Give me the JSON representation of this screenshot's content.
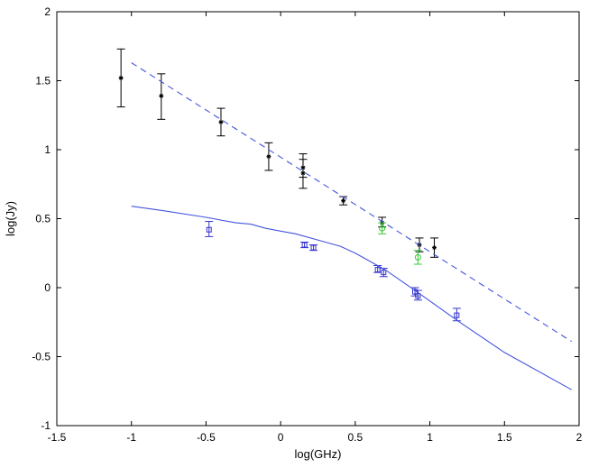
{
  "chart_data": {
    "type": "scatter",
    "xlabel": "log(GHz)",
    "ylabel": "log(Jy)",
    "xlim": [
      -1.5,
      2
    ],
    "ylim": [
      -1,
      2
    ],
    "xticks": [
      "-1.5",
      "-1",
      "-0.5",
      "0",
      "0.5",
      "1",
      "1.5",
      "2"
    ],
    "yticks": [
      "-1",
      "-0.5",
      "0",
      "0.5",
      "1",
      "1.5",
      "2"
    ],
    "grid": false,
    "series": [
      {
        "kind": "errorbar",
        "marker": "star",
        "color": "#000000",
        "points": [
          {
            "x": -1.07,
            "y": 1.52,
            "lo": 1.31,
            "hi": 1.73
          },
          {
            "x": -0.8,
            "y": 1.39,
            "lo": 1.22,
            "hi": 1.55
          },
          {
            "x": -0.4,
            "y": 1.2,
            "lo": 1.1,
            "hi": 1.3
          },
          {
            "x": -0.08,
            "y": 0.95,
            "lo": 0.85,
            "hi": 1.05
          },
          {
            "x": 0.15,
            "y": 0.87,
            "lo": 0.8,
            "hi": 0.97
          },
          {
            "x": 0.15,
            "y": 0.83,
            "lo": 0.72,
            "hi": 0.93
          },
          {
            "x": 0.42,
            "y": 0.63,
            "lo": 0.6,
            "hi": 0.66
          },
          {
            "x": 0.68,
            "y": 0.47,
            "lo": 0.44,
            "hi": 0.51
          },
          {
            "x": 0.93,
            "y": 0.31,
            "lo": 0.26,
            "hi": 0.36
          },
          {
            "x": 1.03,
            "y": 0.29,
            "lo": 0.22,
            "hi": 0.36
          }
        ]
      },
      {
        "kind": "errorbar",
        "marker": "circle",
        "color": "#33cc33",
        "points": [
          {
            "x": 0.68,
            "y": 0.43,
            "lo": 0.39,
            "hi": 0.47
          },
          {
            "x": 0.92,
            "y": 0.22,
            "lo": 0.17,
            "hi": 0.27
          }
        ]
      },
      {
        "kind": "errorbar",
        "marker": "square",
        "color": "#3333cc",
        "points": [
          {
            "x": -0.48,
            "y": 0.42,
            "lo": 0.37,
            "hi": 0.48
          },
          {
            "x": 0.16,
            "y": 0.31,
            "lo": 0.29,
            "hi": 0.33
          },
          {
            "x": 0.22,
            "y": 0.29,
            "lo": 0.27,
            "hi": 0.31
          },
          {
            "x": 0.65,
            "y": 0.13,
            "lo": 0.11,
            "hi": 0.16
          },
          {
            "x": 0.69,
            "y": 0.11,
            "lo": 0.08,
            "hi": 0.14
          },
          {
            "x": 0.9,
            "y": -0.03,
            "lo": -0.06,
            "hi": 0.0
          },
          {
            "x": 0.92,
            "y": -0.06,
            "lo": -0.09,
            "hi": -0.02
          },
          {
            "x": 1.18,
            "y": -0.2,
            "lo": -0.24,
            "hi": -0.15
          }
        ]
      },
      {
        "kind": "line",
        "style": "dashed",
        "color": "#4455dd",
        "points": [
          {
            "x": -1.0,
            "y": 1.63
          },
          {
            "x": 1.95,
            "y": -0.39
          }
        ]
      },
      {
        "kind": "line",
        "style": "solid",
        "color": "#4455dd",
        "points": [
          {
            "x": -1.0,
            "y": 0.59
          },
          {
            "x": -0.8,
            "y": 0.56
          },
          {
            "x": -0.5,
            "y": 0.51
          },
          {
            "x": -0.3,
            "y": 0.47
          },
          {
            "x": -0.2,
            "y": 0.46
          },
          {
            "x": -0.1,
            "y": 0.43
          },
          {
            "x": 0.0,
            "y": 0.41
          },
          {
            "x": 0.1,
            "y": 0.39
          },
          {
            "x": 0.3,
            "y": 0.33
          },
          {
            "x": 0.4,
            "y": 0.3
          },
          {
            "x": 0.5,
            "y": 0.25
          },
          {
            "x": 0.7,
            "y": 0.13
          },
          {
            "x": 0.9,
            "y": -0.02
          },
          {
            "x": 1.2,
            "y": -0.25
          },
          {
            "x": 1.5,
            "y": -0.47
          },
          {
            "x": 1.95,
            "y": -0.74
          }
        ]
      }
    ]
  }
}
